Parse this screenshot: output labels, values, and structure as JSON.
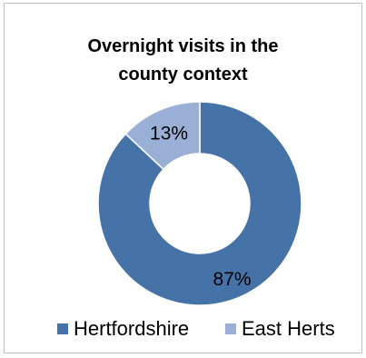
{
  "chart_data": {
    "type": "pie",
    "title": "Overnight visits in the county context",
    "title_lines": [
      "Overnight visits in the",
      "county context"
    ],
    "slices": [
      {
        "name": "Hertfordshire",
        "value": 87,
        "label": "87%",
        "color": "#4572a7"
      },
      {
        "name": "East Herts",
        "value": 13,
        "label": "13%",
        "color": "#9aafd6"
      }
    ],
    "donut": true,
    "legend_position": "bottom",
    "start_angle_deg": 0,
    "direction": "counterclockwise-from-top for East Herts"
  }
}
